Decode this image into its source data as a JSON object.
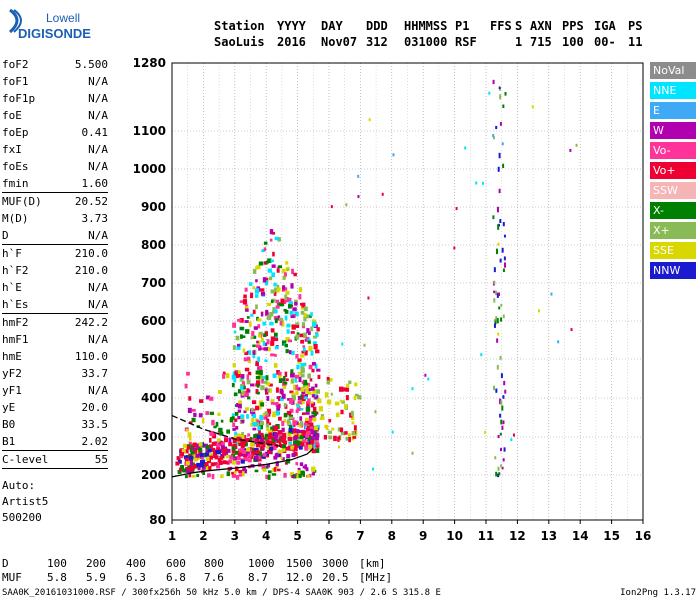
{
  "logo": {
    "line1": "Lowell",
    "line2": "DIGISONDE"
  },
  "header": {
    "labels": [
      "Station",
      "YYYY",
      "DAY",
      "DDD",
      "HHMMSS",
      "P1",
      "FFS",
      "S",
      "AXN",
      "PPS",
      "IGA",
      "PS"
    ],
    "values": [
      "SaoLuis",
      "2016",
      "Nov07",
      "312",
      "031000",
      "RSF",
      "",
      "1",
      "715",
      "100",
      "00-",
      "11"
    ]
  },
  "params": [
    {
      "name": "foF2",
      "value": "5.500"
    },
    {
      "name": "foF1",
      "value": "N/A"
    },
    {
      "name": "foF1p",
      "value": "N/A"
    },
    {
      "name": "foE",
      "value": "N/A"
    },
    {
      "name": "foEp",
      "value": "0.41"
    },
    {
      "name": "fxI",
      "value": "N/A"
    },
    {
      "name": "foEs",
      "value": "N/A"
    },
    {
      "name": "fmin",
      "value": "1.60"
    },
    {
      "sep": true
    },
    {
      "name": "MUF(D)",
      "value": "20.52"
    },
    {
      "name": "M(D)",
      "value": "3.73"
    },
    {
      "name": "D",
      "value": "N/A"
    },
    {
      "sep": true
    },
    {
      "name": "h`F",
      "value": "210.0"
    },
    {
      "name": "h`F2",
      "value": "210.0"
    },
    {
      "name": "h`E",
      "value": "N/A"
    },
    {
      "name": "h`Es",
      "value": "N/A"
    },
    {
      "sep": true
    },
    {
      "name": "hmF2",
      "value": "242.2"
    },
    {
      "name": "hmF1",
      "value": "N/A"
    },
    {
      "name": "hmE",
      "value": "110.0"
    },
    {
      "name": "yF2",
      "value": "33.7"
    },
    {
      "name": "yF1",
      "value": "N/A"
    },
    {
      "name": "yE",
      "value": "20.0"
    },
    {
      "name": "B0",
      "value": "33.5"
    },
    {
      "name": "B1",
      "value": "2.02"
    },
    {
      "sep": true
    },
    {
      "name": "C-level",
      "value": "55"
    },
    {
      "sep": true
    }
  ],
  "autoscaling": {
    "line1": "Auto:",
    "line2": "Artist5",
    "line3": "500200"
  },
  "legend": [
    {
      "label": "NoVal",
      "color": "#8c8c8c"
    },
    {
      "label": "NNE",
      "color": "#00e5ff"
    },
    {
      "label": "E",
      "color": "#3fa9f5"
    },
    {
      "label": "W",
      "color": "#b000b0"
    },
    {
      "label": "Vo-",
      "color": "#ff3399"
    },
    {
      "label": "Vo+",
      "color": "#ee0033"
    },
    {
      "label": "SSW",
      "color": "#f5b5b5"
    },
    {
      "label": "X-",
      "color": "#008000"
    },
    {
      "label": "X+",
      "color": "#88bb55"
    },
    {
      "label": "SSE",
      "color": "#d8d800"
    },
    {
      "label": "NNW",
      "color": "#1a1ad0"
    }
  ],
  "muf_table": {
    "d_label": "D",
    "d_values": [
      "100",
      "200",
      "400",
      "600",
      "800",
      "1000",
      "1500",
      "3000"
    ],
    "d_unit": "[km]",
    "muf_label": "MUF",
    "muf_values": [
      "5.8",
      "5.9",
      "6.3",
      "6.8",
      "7.6",
      "8.7",
      "12.0",
      "20.5"
    ],
    "muf_unit": "[MHz]"
  },
  "footer": {
    "left": "SAA0K_20161031000.RSF / 300fx256h 50 kHz 5.0 km / DPS-4 SAA0K 903 / 2.6 S 315.8 E",
    "right": "Ion2Png 1.3.17"
  },
  "chart_data": {
    "type": "scatter",
    "title": "",
    "xlabel": "",
    "ylabel": "",
    "xlim": [
      1,
      16
    ],
    "ylim": [
      80,
      1280
    ],
    "x_ticks": [
      1,
      2,
      3,
      4,
      5,
      6,
      7,
      8,
      9,
      10,
      11,
      12,
      13,
      14,
      15,
      16
    ],
    "y_ticks": [
      80,
      200,
      300,
      400,
      500,
      600,
      700,
      800,
      900,
      1000,
      1100,
      1280
    ],
    "y_scale": "nonlinear",
    "grid": true,
    "legend_position": "right",
    "trace_o": {
      "x": [
        1.0,
        1.6,
        2.0,
        3.0,
        4.0,
        4.8,
        5.3,
        5.5
      ],
      "y": [
        195,
        205,
        210,
        218,
        228,
        240,
        255,
        270
      ]
    },
    "trace_x": {
      "x": [
        1.0,
        2.0,
        3.0,
        4.0,
        4.5
      ],
      "y": [
        355,
        320,
        295,
        282,
        275
      ]
    },
    "regions": [
      {
        "x": [
          1.4,
          5.6
        ],
        "y": [
          200,
          470
        ],
        "colors": [
          "Vo+",
          "Vo-",
          "X-",
          "W",
          "SSE"
        ]
      },
      {
        "x": [
          2.9,
          5.6
        ],
        "y": [
          280,
          870
        ],
        "colors": [
          "SSE",
          "Vo+",
          "W",
          "X-",
          "NNE",
          "Vo-",
          "X+"
        ]
      },
      {
        "x": [
          5.6,
          6.9
        ],
        "y": [
          300,
          460
        ],
        "colors": [
          "SSE",
          "X+",
          "Vo+"
        ]
      },
      {
        "x": [
          11.2,
          11.6
        ],
        "y": [
          200,
          1250
        ],
        "colors": [
          "X-",
          "X+",
          "NNW",
          "W"
        ]
      }
    ]
  }
}
